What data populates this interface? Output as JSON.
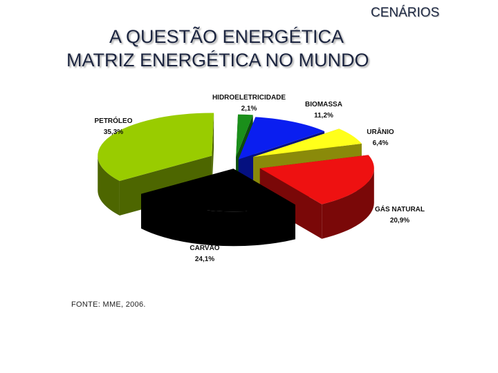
{
  "header": {
    "section": "CENÁRIOS",
    "title_line1": "A QUESTÃO ENERGÉTICA",
    "title_line2": "MATRIZ ENERGÉTICA NO MUNDO"
  },
  "chart_data": {
    "type": "pie",
    "style": "3d-exploded",
    "slices": [
      {
        "key": "hidro",
        "label": "HIDROELETRICIDADE",
        "value_label": "2,1%",
        "value": 2.1,
        "color": "#1a8f1a",
        "dark": "#0d4d0d"
      },
      {
        "key": "biomassa",
        "label": "BIOMASSA",
        "value_label": "11,2%",
        "value": 11.2,
        "color": "#0a1ef0",
        "dark": "#051080"
      },
      {
        "key": "uranio",
        "label": "URÂNIO",
        "value_label": "6,4%",
        "value": 6.4,
        "color": "#ffff1a",
        "dark": "#8a8a0a"
      },
      {
        "key": "gas",
        "label": "GÁS NATURAL",
        "value_label": "20,9%",
        "value": 20.9,
        "color": "#ee1111",
        "dark": "#7a0808"
      },
      {
        "key": "carvao",
        "label": "CARVÃO",
        "value_label": "24,1%",
        "value": 24.1,
        "color": "#000000",
        "dark": "#000000"
      },
      {
        "key": "petroleo",
        "label": "PETRÓLEO",
        "value_label": "35,3%",
        "value": 35.3,
        "color": "#99cc00",
        "dark": "#4d6600"
      }
    ]
  },
  "footer": {
    "source": "FONTE: MME, 2006."
  }
}
